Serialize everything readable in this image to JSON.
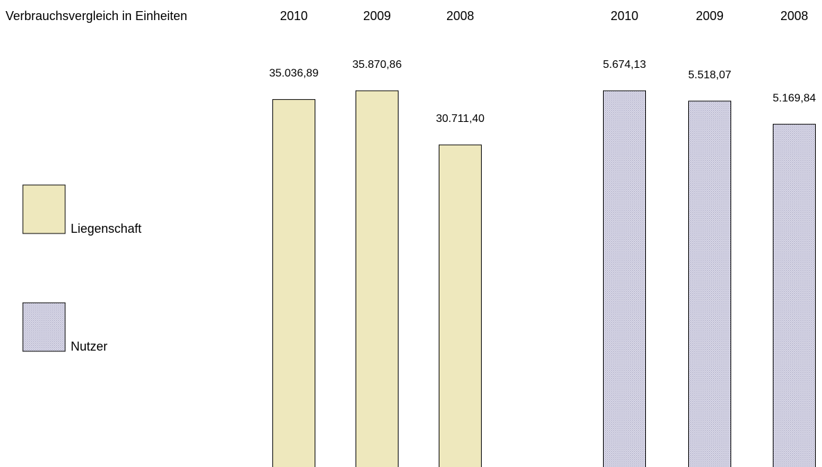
{
  "chart_data": {
    "type": "bar",
    "title": "Verbrauchsvergleich in Einheiten",
    "categories": [
      "2010",
      "2009",
      "2008"
    ],
    "series": [
      {
        "name": "Liegenschaft",
        "color": "#eee8bd",
        "values": [
          35036.89,
          35870.86,
          30711.4
        ],
        "labels": [
          "35.036,89",
          "35.870,86",
          "30.711,40"
        ]
      },
      {
        "name": "Nutzer",
        "color": "#c9c8d9",
        "values": [
          5674.13,
          5518.07,
          5169.84
        ],
        "labels": [
          "5.674,13",
          "5.518,07",
          "5.169,84"
        ]
      }
    ],
    "legend_position": "left",
    "grid": false
  }
}
